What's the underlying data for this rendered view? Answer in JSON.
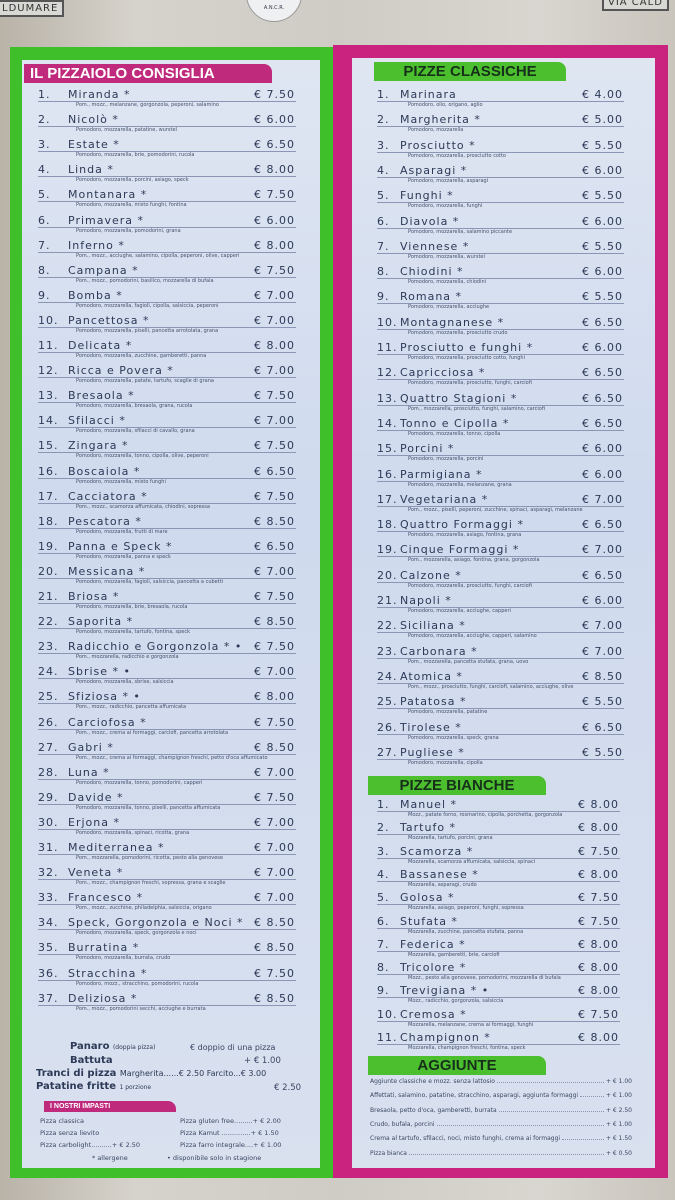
{
  "background": {
    "sign_left": "LDUMARE",
    "sign_right": "VIA CALD",
    "plaque": "A.N.C.R."
  },
  "colors": {
    "left_border": "#3fc02a",
    "right_border": "#c9237f",
    "header_green": "#4cbf2e",
    "header_pink": "#c02a7c"
  },
  "left": {
    "title": "IL PIZZAIOLO CONSIGLIA",
    "items": [
      {
        "num": "1.",
        "name": "Miranda *",
        "price": "€ 7.50",
        "desc": "Pom., mozz., melanzane, gorgonzola, peperoni, salamino"
      },
      {
        "num": "2.",
        "name": "Nicolò *",
        "price": "€ 6.00",
        "desc": "Pomodoro, mozzarella, patatine, wurstel"
      },
      {
        "num": "3.",
        "name": "Estate *",
        "price": "€ 6.50",
        "desc": "Pomodoro, mozzarella, brie, pomodorini, rucola"
      },
      {
        "num": "4.",
        "name": "Linda *",
        "price": "€ 8.00",
        "desc": "Pomodoro, mozzarella, porcini, asiago, speck"
      },
      {
        "num": "5.",
        "name": "Montanara *",
        "price": "€ 7.50",
        "desc": "Pomodoro, mozzarella, misto funghi, fontina"
      },
      {
        "num": "6.",
        "name": "Primavera *",
        "price": "€ 6.00",
        "desc": "Pomodoro, mozzarella, pomodorini, grana"
      },
      {
        "num": "7.",
        "name": "Inferno *",
        "price": "€ 8.00",
        "desc": "Pom., mozz., acciughe, salamino, cipolla, peperoni, olive, capperi"
      },
      {
        "num": "8.",
        "name": "Campana *",
        "price": "€ 7.50",
        "desc": "Pom., mozz., pomodorini, basilico, mozzarella di bufala"
      },
      {
        "num": "9.",
        "name": "Bomba *",
        "price": "€ 7.00",
        "desc": "Pomodoro, mozzarella, fagioli, cipolla, salsiccia, peperoni"
      },
      {
        "num": "10.",
        "name": "Pancettosa *",
        "price": "€ 7.00",
        "desc": "Pomodoro, mozzarella, piselli, pancetta arrotolata, grana"
      },
      {
        "num": "11.",
        "name": "Delicata *",
        "price": "€ 8.00",
        "desc": "Pomodoro, mozzarella, zucchine, gamberetti, panna"
      },
      {
        "num": "12.",
        "name": "Ricca e Povera *",
        "price": "€ 7.00",
        "desc": "Pomodoro, mozzarella, patate, tartufo, scaglie di grana"
      },
      {
        "num": "13.",
        "name": "Bresaola *",
        "price": "€ 7.50",
        "desc": "Pomodoro, mozzarella, bresaola, grana, rucola"
      },
      {
        "num": "14.",
        "name": "Sfilacci *",
        "price": "€ 7.00",
        "desc": "Pomodoro, mozzarella, sfilacci di cavallo, grana"
      },
      {
        "num": "15.",
        "name": "Zingara *",
        "price": "€ 7.50",
        "desc": "Pomodoro, mozzarella, tonno, cipolla, olive, peperoni"
      },
      {
        "num": "16.",
        "name": "Boscaiola *",
        "price": "€ 6.50",
        "desc": "Pomodoro, mozzarella, misto funghi"
      },
      {
        "num": "17.",
        "name": "Cacciatora *",
        "price": "€ 7.50",
        "desc": "Pom., mozz., scamorza affumicata, chiodini, sopressa"
      },
      {
        "num": "18.",
        "name": "Pescatora *",
        "price": "€ 8.50",
        "desc": "Pomodoro, mozzarella, frutti di mare"
      },
      {
        "num": "19.",
        "name": "Panna e Speck *",
        "price": "€ 6.50",
        "desc": "Pomodoro, mozzarella, panna e speck"
      },
      {
        "num": "20.",
        "name": "Messicana *",
        "price": "€ 7.00",
        "desc": "Pomodoro, mozzarella, fagioli, salsiccia, pancetta a cubetti"
      },
      {
        "num": "21.",
        "name": "Briosa *",
        "price": "€ 7.50",
        "desc": "Pomodoro, mozzarella, brie, bresaola, rucola"
      },
      {
        "num": "22.",
        "name": "Saporita *",
        "price": "€ 8.50",
        "desc": "Pomodoro, mozzarella, tartufo, fontina, speck"
      },
      {
        "num": "23.",
        "name": "Radicchio e Gorgonzola * •",
        "price": "€ 7.50",
        "desc": "Pom., mozzarella, radicchio e gorgonzola"
      },
      {
        "num": "24.",
        "name": "Sbrise * •",
        "price": "€ 7.00",
        "desc": "Pomodoro, mozzarella, sbrise, salsiccia"
      },
      {
        "num": "25.",
        "name": "Sfiziosa * •",
        "price": "€ 8.00",
        "desc": "Pom., mozz., radicchio, pancetta affumicata"
      },
      {
        "num": "26.",
        "name": "Carciofosa *",
        "price": "€ 7.50",
        "desc": "Pom., mozz., crema ai formaggi, carciofi, pancetta arrotolata"
      },
      {
        "num": "27.",
        "name": "Gabri *",
        "price": "€ 8.50",
        "desc": "Pom., mozz., crema ai formaggi, champignon freschi, petto d'oca affumicato"
      },
      {
        "num": "28.",
        "name": "Luna *",
        "price": "€ 7.00",
        "desc": "Pomodoro, mozzarella, tonno, pomodorini, capperi"
      },
      {
        "num": "29.",
        "name": "Davide *",
        "price": "€ 7.50",
        "desc": "Pomodoro, mozzarella, tonno, piselli, pancetta affumicata"
      },
      {
        "num": "30.",
        "name": "Erjona *",
        "price": "€ 7.00",
        "desc": "Pomodoro, mozzarella, spinaci, ricotta, grana"
      },
      {
        "num": "31.",
        "name": "Mediterranea *",
        "price": "€ 7.00",
        "desc": "Pom., mozzarella, pomodorini, ricotta, pesto alla genovese"
      },
      {
        "num": "32.",
        "name": "Veneta *",
        "price": "€ 7.00",
        "desc": "Pom., mozz., champignon freschi, sopressa, grana e scaglie"
      },
      {
        "num": "33.",
        "name": "Francesco *",
        "price": "€ 7.00",
        "desc": "Pom., mozz., zucchine, philadelphia, salsiccia, origano"
      },
      {
        "num": "34.",
        "name": "Speck, Gorgonzola e Noci *",
        "price": "€ 8.50",
        "desc": "Pomodoro, mozzarella, speck, gorgonzola e noci"
      },
      {
        "num": "35.",
        "name": "Burratina *",
        "price": "€ 8.50",
        "desc": "Pomodoro, mozzarella, burrata, crudo"
      },
      {
        "num": "36.",
        "name": "Stracchina *",
        "price": "€ 7.50",
        "desc": "Pomodoro, mozz., stracchino, pomodorini, rucola"
      },
      {
        "num": "37.",
        "name": "Deliziosa *",
        "price": "€ 8.50",
        "desc": "Pom., mozz., pomodorini secchi, acciughe e burrata"
      }
    ],
    "extras": {
      "panaro": {
        "label": "Panaro",
        "note": "(doppia pizza)",
        "price": "€ doppio di una pizza"
      },
      "battuta": {
        "label": "Battuta",
        "price": "+ € 1.00"
      },
      "tranci": {
        "label": "Tranci di pizza",
        "detail": "Margherita......€ 2.50  Farcito...€ 3.00"
      },
      "patatine": {
        "label": "Patatine fritte",
        "detail": "1 porzione",
        "price": "€ 2.50"
      }
    },
    "impasti": {
      "title": "I NOSTRI IMPASTI",
      "left": [
        "Pizza classica",
        "Pizza senza lievito",
        "Pizza carbolight..........+ € 2.50"
      ],
      "right": [
        "Pizza gluten free.........+ € 2.00",
        "Pizza Kamut ..............+ € 1.50",
        "Pizza farro integrale....+ € 1.00"
      ]
    },
    "legend": {
      "allergen": "* allergene",
      "seasonal": "• disponibile solo in stagione"
    }
  },
  "right": {
    "classiche": {
      "title": "PIZZE CLASSICHE",
      "items": [
        {
          "num": "1.",
          "name": "Marinara",
          "price": "€ 4.00",
          "desc": "Pomodoro, olio, origano, aglio"
        },
        {
          "num": "2.",
          "name": "Margherita *",
          "price": "€ 5.00",
          "desc": "Pomodoro, mozzarella"
        },
        {
          "num": "3.",
          "name": "Prosciutto *",
          "price": "€ 5.50",
          "desc": "Pomodoro, mozzarella, prosciutto cotto"
        },
        {
          "num": "4.",
          "name": "Asparagi *",
          "price": "€ 6.00",
          "desc": "Pomodoro, mozzarella, asparagi"
        },
        {
          "num": "5.",
          "name": "Funghi *",
          "price": "€ 5.50",
          "desc": "Pomodoro, mozzarella, funghi"
        },
        {
          "num": "6.",
          "name": "Diavola *",
          "price": "€ 6.00",
          "desc": "Pomodoro, mozzarella, salamino piccante"
        },
        {
          "num": "7.",
          "name": "Viennese *",
          "price": "€ 5.50",
          "desc": "Pomodoro, mozzarella, wurstel"
        },
        {
          "num": "8.",
          "name": "Chiodini *",
          "price": "€ 6.00",
          "desc": "Pomodoro, mozzarella, chiodini"
        },
        {
          "num": "9.",
          "name": "Romana *",
          "price": "€ 5.50",
          "desc": "Pomodoro, mozzarella, acciughe"
        },
        {
          "num": "10.",
          "name": "Montagnanese *",
          "price": "€ 6.50",
          "desc": "Pomodoro, mozzarella, prosciutto crudo"
        },
        {
          "num": "11.",
          "name": "Prosciutto e funghi *",
          "price": "€ 6.00",
          "desc": "Pomodoro, mozzarella, prosciutto cotto, funghi"
        },
        {
          "num": "12.",
          "name": "Capricciosa *",
          "price": "€ 6.50",
          "desc": "Pomodoro, mozzarella, prosciutto, funghi, carciofi"
        },
        {
          "num": "13.",
          "name": "Quattro Stagioni *",
          "price": "€ 6.50",
          "desc": "Pom., mozzarella, prosciutto, funghi, salamino, carciofi"
        },
        {
          "num": "14.",
          "name": "Tonno e Cipolla *",
          "price": "€ 6.50",
          "desc": "Pomodoro, mozzarella, tonno, cipolla"
        },
        {
          "num": "15.",
          "name": "Porcini *",
          "price": "€ 6.00",
          "desc": "Pomodoro, mozzarella, porcini"
        },
        {
          "num": "16.",
          "name": "Parmigiana *",
          "price": "€ 6.00",
          "desc": "Pomodoro, mozzarella, melanzane, grana"
        },
        {
          "num": "17.",
          "name": "Vegetariana *",
          "price": "€ 7.00",
          "desc": "Pom., mozz., piselli, peperoni, zucchine, spinaci, asparagi, melanzane"
        },
        {
          "num": "18.",
          "name": "Quattro Formaggi *",
          "price": "€ 6.50",
          "desc": "Pomodoro, mozzarella, asiago, fontina, grana"
        },
        {
          "num": "19.",
          "name": "Cinque Formaggi *",
          "price": "€ 7.00",
          "desc": "Pom., mozzarella, asiago, fontina, grana, gorgonzola"
        },
        {
          "num": "20.",
          "name": "Calzone *",
          "price": "€ 6.50",
          "desc": "Pomodoro, mozzarella, prosciutto, funghi, carciofi"
        },
        {
          "num": "21.",
          "name": "Napoli *",
          "price": "€ 6.00",
          "desc": "Pomodoro, mozzarella, acciughe, capperi"
        },
        {
          "num": "22.",
          "name": "Siciliana *",
          "price": "€ 7.00",
          "desc": "Pomodoro, mozzarella, acciughe, capperi, salamino"
        },
        {
          "num": "23.",
          "name": "Carbonara *",
          "price": "€ 7.00",
          "desc": "Pom., mozzarella, pancetta stufata, grana, uovo"
        },
        {
          "num": "24.",
          "name": "Atomica *",
          "price": "€ 8.50",
          "desc": "Pom., mozz., prosciutto, funghi, carciofi, salamino, acciughe, olive"
        },
        {
          "num": "25.",
          "name": "Patatosa *",
          "price": "€ 5.50",
          "desc": "Pomodoro, mozzarella, patatine"
        },
        {
          "num": "26.",
          "name": "Tirolese *",
          "price": "€ 6.50",
          "desc": "Pomodoro, mozzarella, speck, grana"
        },
        {
          "num": "27.",
          "name": "Pugliese *",
          "price": "€ 5.50",
          "desc": "Pomodoro, mozzarella, cipolla"
        }
      ]
    },
    "bianche": {
      "title": "PIZZE BIANCHE",
      "items": [
        {
          "num": "1.",
          "name": "Manuel *",
          "price": "€ 8.00",
          "desc": "Mozz., patate forno, rosmarino, cipolla, porchetta, gorgonzola"
        },
        {
          "num": "2.",
          "name": "Tartufo *",
          "price": "€ 8.00",
          "desc": "Mozzarella, tartufo, porcini, grana"
        },
        {
          "num": "3.",
          "name": "Scamorza *",
          "price": "€ 7.50",
          "desc": "Mozzarella, scamorza affumicata, salsiccia, spinaci"
        },
        {
          "num": "4.",
          "name": "Bassanese *",
          "price": "€ 8.00",
          "desc": "Mozzarella, asparagi, crudo"
        },
        {
          "num": "5.",
          "name": "Golosa *",
          "price": "€ 7.50",
          "desc": "Mozzarella, asiago, peperoni, funghi, sopressa"
        },
        {
          "num": "6.",
          "name": "Stufata *",
          "price": "€ 7.50",
          "desc": "Mozzarella, zucchine, pancetta stufata, panna"
        },
        {
          "num": "7.",
          "name": "Federica *",
          "price": "€ 8.00",
          "desc": "Mozzarella, gamberetti, brie, carciofi"
        },
        {
          "num": "8.",
          "name": "Tricolore *",
          "price": "€ 8.00",
          "desc": "Mozz., pesto alla genovese, pomodorini, mozzarella di bufala"
        },
        {
          "num": "9.",
          "name": "Trevigiana * •",
          "price": "€ 8.00",
          "desc": "Mozz., radicchio, gorgonzola, salsiccia"
        },
        {
          "num": "10.",
          "name": "Cremosa *",
          "price": "€ 7.50",
          "desc": "Mozzarella, melanzane, crema ai formaggi, funghi"
        },
        {
          "num": "11.",
          "name": "Champignon *",
          "price": "€ 8.00",
          "desc": "Mozzarella, champignon freschi, fontina, speck"
        }
      ]
    },
    "aggiunte": {
      "title": "AGGIUNTE",
      "items": [
        {
          "label": "Aggiunte classiche e mozz. senza lattosio",
          "price": "+ € 1.00"
        },
        {
          "label": "Affettati, salamino, patatine, stracchino, asparagi, aggiunta formaggi",
          "price": "+ € 1.00"
        },
        {
          "label": "Bresaola, petto d'oca, gamberetti, burrata",
          "price": "+ € 2.50"
        },
        {
          "label": "Crudo, bufala, porcini",
          "price": "+ € 1.00"
        },
        {
          "label": "Crema al tartufo, sfilacci, noci, misto funghi, crema ai formaggi",
          "price": "+ € 1.50"
        },
        {
          "label": "Pizza bianca",
          "price": "+ € 0.50"
        }
      ]
    }
  }
}
